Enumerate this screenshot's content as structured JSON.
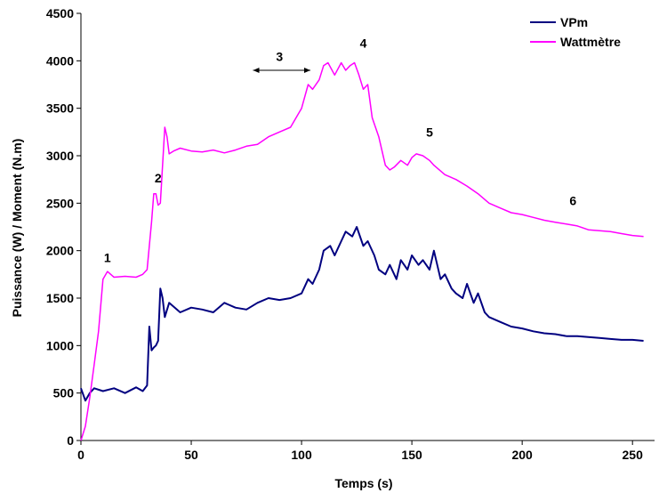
{
  "chart_data": {
    "type": "line",
    "xlabel": "Temps (s)",
    "ylabel": "Puissance (W) / Moment (N.m)",
    "xlim": [
      0,
      260
    ],
    "ylim": [
      0,
      4500
    ],
    "x_ticks": [
      "0",
      "50",
      "100",
      "150",
      "200",
      "250"
    ],
    "y_ticks": [
      "0",
      "500",
      "1000",
      "1500",
      "2000",
      "2500",
      "3000",
      "3500",
      "4000",
      "4500"
    ],
    "grid": false,
    "legend_position": "top-right",
    "series": [
      {
        "name": "VPm",
        "color": "#000080",
        "x": [
          0,
          2,
          4,
          6,
          10,
          15,
          20,
          25,
          28,
          30,
          31,
          32,
          33,
          34,
          35,
          36,
          37,
          38,
          40,
          45,
          50,
          55,
          60,
          65,
          70,
          75,
          80,
          85,
          90,
          95,
          100,
          103,
          105,
          108,
          110,
          113,
          115,
          118,
          120,
          123,
          125,
          128,
          130,
          133,
          135,
          138,
          140,
          143,
          145,
          148,
          150,
          153,
          155,
          158,
          160,
          163,
          165,
          168,
          170,
          173,
          175,
          178,
          180,
          183,
          185,
          190,
          195,
          200,
          205,
          210,
          215,
          220,
          225,
          230,
          235,
          240,
          245,
          250,
          255
        ],
        "values": [
          550,
          420,
          500,
          550,
          520,
          550,
          500,
          560,
          520,
          580,
          1200,
          950,
          980,
          1000,
          1050,
          1600,
          1500,
          1300,
          1450,
          1350,
          1400,
          1380,
          1350,
          1450,
          1400,
          1380,
          1450,
          1500,
          1480,
          1500,
          1550,
          1700,
          1650,
          1800,
          2000,
          2050,
          1950,
          2100,
          2200,
          2150,
          2250,
          2050,
          2100,
          1950,
          1800,
          1750,
          1850,
          1700,
          1900,
          1800,
          1950,
          1850,
          1900,
          1800,
          2000,
          1700,
          1750,
          1600,
          1550,
          1500,
          1650,
          1450,
          1550,
          1350,
          1300,
          1250,
          1200,
          1180,
          1150,
          1130,
          1120,
          1100,
          1100,
          1090,
          1080,
          1070,
          1060,
          1060,
          1050
        ]
      },
      {
        "name": "Wattmètre",
        "color": "#ff00ff",
        "x": [
          0,
          2,
          4,
          6,
          8,
          10,
          12,
          15,
          20,
          25,
          28,
          30,
          32,
          33,
          34,
          35,
          36,
          37,
          38,
          39,
          40,
          42,
          45,
          50,
          55,
          60,
          65,
          70,
          75,
          80,
          85,
          90,
          95,
          100,
          103,
          105,
          108,
          110,
          112,
          115,
          118,
          120,
          122,
          124,
          126,
          128,
          130,
          132,
          135,
          138,
          140,
          142,
          145,
          148,
          150,
          152,
          155,
          158,
          160,
          165,
          170,
          175,
          180,
          185,
          190,
          195,
          200,
          205,
          210,
          215,
          220,
          225,
          230,
          235,
          240,
          245,
          250,
          255
        ],
        "values": [
          0,
          150,
          450,
          800,
          1150,
          1700,
          1780,
          1720,
          1730,
          1720,
          1750,
          1800,
          2300,
          2600,
          2600,
          2480,
          2500,
          2900,
          3300,
          3200,
          3020,
          3050,
          3080,
          3050,
          3040,
          3060,
          3030,
          3060,
          3100,
          3120,
          3200,
          3250,
          3300,
          3500,
          3750,
          3700,
          3800,
          3950,
          3980,
          3850,
          3980,
          3900,
          3950,
          3980,
          3850,
          3700,
          3750,
          3400,
          3200,
          2900,
          2850,
          2880,
          2950,
          2900,
          2980,
          3020,
          3000,
          2950,
          2900,
          2800,
          2750,
          2680,
          2600,
          2500,
          2450,
          2400,
          2380,
          2350,
          2320,
          2300,
          2280,
          2260,
          2220,
          2210,
          2200,
          2180,
          2160,
          2150
        ]
      }
    ],
    "annotations": [
      {
        "text": "1",
        "x": 12,
        "y": 1880
      },
      {
        "text": "2",
        "x": 35,
        "y": 2720
      },
      {
        "text": "3",
        "x": 90,
        "y": 4000
      },
      {
        "text": "4",
        "x": 128,
        "y": 4140
      },
      {
        "text": "5",
        "x": 158,
        "y": 3200
      },
      {
        "text": "6",
        "x": 223,
        "y": 2480
      }
    ],
    "arrow": {
      "x_from": 78,
      "x_to": 104,
      "y": 3900
    }
  }
}
